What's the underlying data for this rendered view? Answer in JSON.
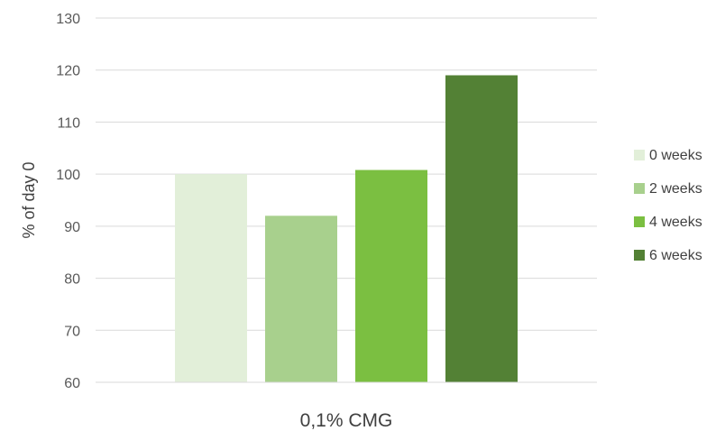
{
  "chart_data": {
    "type": "bar",
    "categories": [
      "0,1% CMG"
    ],
    "series": [
      {
        "name": "0 weeks",
        "values": [
          100
        ],
        "color": "#e2efd9"
      },
      {
        "name": "2 weeks",
        "values": [
          92
        ],
        "color": "#a8d08d"
      },
      {
        "name": "4 weeks",
        "values": [
          100.8
        ],
        "color": "#7bbf41"
      },
      {
        "name": "6 weeks",
        "values": [
          119
        ],
        "color": "#538135"
      }
    ],
    "title": "",
    "xlabel": "",
    "ylabel": "% of day 0",
    "ylim": [
      60,
      130
    ],
    "yticks": [
      60,
      70,
      80,
      90,
      100,
      110,
      120,
      130
    ],
    "grid": true,
    "legend": "right"
  }
}
